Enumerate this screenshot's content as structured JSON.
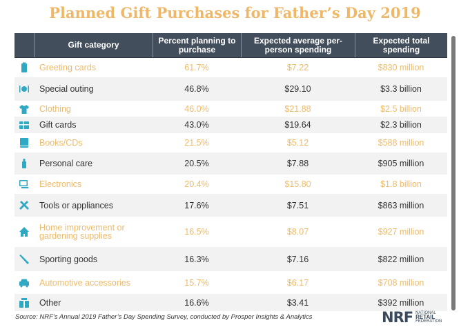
{
  "title": "Planned Gift Purchases for Father’s Day 2019",
  "colors": {
    "title": "#EFB768",
    "header_bg": "#434E5C",
    "highlight_text": "#EDBB6A",
    "normal_text": "#333333",
    "alt_row_bg": "#F2F2F2",
    "icon": "#2FA8C3"
  },
  "table": {
    "headers": [
      "",
      "Gift category",
      "Percent planning to purchase",
      "Expected average per-person spending",
      "Expected total spending"
    ],
    "rows": [
      {
        "icon": "greeting-card-icon",
        "category": "Greeting cards",
        "percent": "61.7%",
        "avg": "$7.22",
        "total": "$830 million",
        "style": "highlight"
      },
      {
        "icon": "dining-plate-icon",
        "category": "Special outing",
        "percent": "46.8%",
        "avg": "$29.10",
        "total": "$3.3 billion",
        "style": "normal"
      },
      {
        "icon": "shirt-icon",
        "category": "Clothing",
        "percent": "46.0%",
        "avg": "$21.88",
        "total": "$2.5 billion",
        "style": "highlight"
      },
      {
        "icon": "gift-card-icon",
        "category": "Gift cards",
        "percent": "43.0%",
        "avg": "$19.64",
        "total": "$2.3 billion",
        "style": "normal"
      },
      {
        "icon": "book-icon",
        "category": "Books/CDs",
        "percent": "21.5%",
        "avg": "$5.12",
        "total": "$588 million",
        "style": "highlight"
      },
      {
        "icon": "bottle-icon",
        "category": "Personal care",
        "percent": "20.5%",
        "avg": "$7.88",
        "total": "$905 million",
        "style": "normal"
      },
      {
        "icon": "computer-icon",
        "category": "Electronics",
        "percent": "20.4%",
        "avg": "$15.80",
        "total": "$1.8 billion",
        "style": "highlight"
      },
      {
        "icon": "tools-icon",
        "category": "Tools or appliances",
        "percent": "17.6%",
        "avg": "$7.51",
        "total": "$863 million",
        "style": "normal"
      },
      {
        "icon": "house-icon",
        "category": "Home improvement or gardening supplies",
        "percent": "16.5%",
        "avg": "$8.07",
        "total": "$927 million",
        "style": "highlight"
      },
      {
        "icon": "baseball-bat-icon",
        "category": "Sporting goods",
        "percent": "16.3%",
        "avg": "$7.16",
        "total": "$822 million",
        "style": "normal"
      },
      {
        "icon": "car-icon",
        "category": "Automotive accessories",
        "percent": "15.7%",
        "avg": "$6.17",
        "total": "$708 million",
        "style": "highlight"
      },
      {
        "icon": "gift-box-icon",
        "category": "Other",
        "percent": "16.6%",
        "avg": "$3.41",
        "total": "$392 million",
        "style": "normal"
      }
    ]
  },
  "source": "Source: NRF’s Annual 2019 Father’s Day Spending Survey, conducted by Prosper Insights & Analytics",
  "logo": {
    "mark": "NRF",
    "line1": "NATIONAL",
    "line2": "RETAIL",
    "line3": "FEDERATION"
  }
}
